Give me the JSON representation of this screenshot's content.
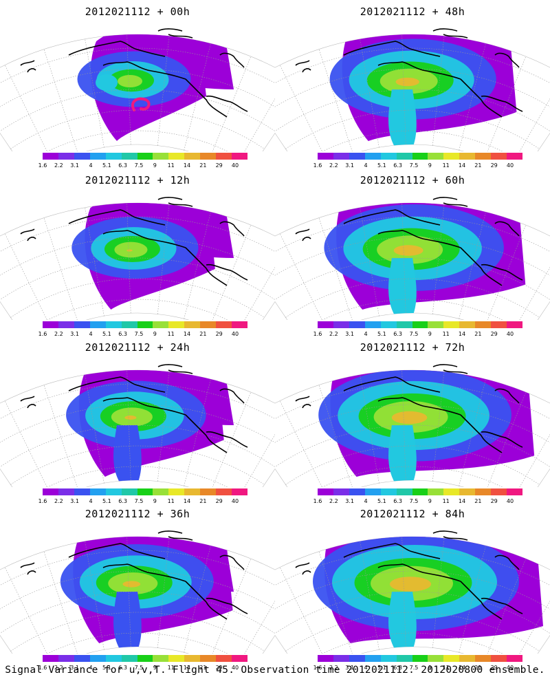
{
  "figure": {
    "caption": "Signal Variance for u,v,T. Flight 45. Observation time 2012021112. 2012020800 ensemble."
  },
  "colorbar": {
    "labels": [
      "1.6",
      "2.2",
      "3.1",
      "4",
      "5.1",
      "6.3",
      "7.5",
      "9",
      "11",
      "14",
      "21",
      "29",
      "40"
    ],
    "colors": [
      "#9c00d8",
      "#7a2ee8",
      "#3a52f0",
      "#22a0f0",
      "#22c8e0",
      "#20c8a8",
      "#18d018",
      "#98e038",
      "#e8e828",
      "#e8b830",
      "#e88828",
      "#f05040",
      "#f01880"
    ]
  },
  "panels": [
    {
      "title": "2012021112 + 00h",
      "lead_hours": 0
    },
    {
      "title": "2012021112 + 48h",
      "lead_hours": 48
    },
    {
      "title": "2012021112 + 12h",
      "lead_hours": 12
    },
    {
      "title": "2012021112 + 60h",
      "lead_hours": 60
    },
    {
      "title": "2012021112 + 24h",
      "lead_hours": 24
    },
    {
      "title": "2012021112 + 72h",
      "lead_hours": 72
    },
    {
      "title": "2012021112 + 36h",
      "lead_hours": 36
    },
    {
      "title": "2012021112 + 84h",
      "lead_hours": 84
    }
  ]
}
